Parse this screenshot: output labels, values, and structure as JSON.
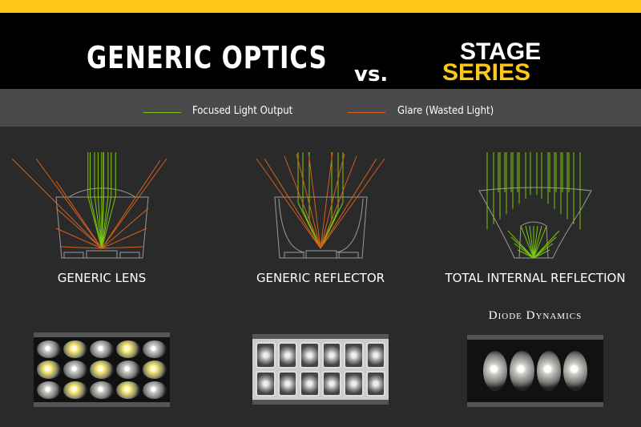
{
  "header": {
    "title": "GENERIC OPTICS",
    "vs": "vs.",
    "logo_line1": "STAGE",
    "logo_line2": "SERIES"
  },
  "legend": {
    "items": [
      {
        "label": "Focused Light Output",
        "color": "#7ac70c"
      },
      {
        "label": "Glare (Wasted Light)",
        "color": "#d8601a"
      }
    ]
  },
  "diagrams": [
    {
      "caption": "GENERIC LENS"
    },
    {
      "caption": "GENERIC REFLECTOR"
    },
    {
      "caption": "TOTAL INTERNAL REFLECTION"
    }
  ],
  "brand": "Diode Dynamics",
  "colors": {
    "accent": "#fec81a",
    "focused": "#7ac70c",
    "glare": "#d8601a",
    "outline": "#9a9a9a"
  }
}
